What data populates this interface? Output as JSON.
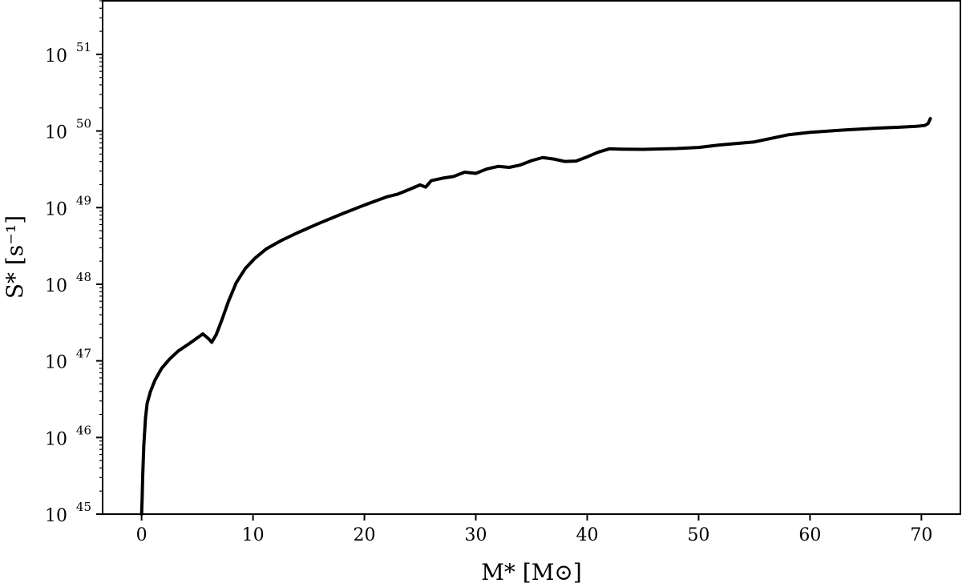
{
  "chart_data": {
    "type": "line",
    "title": "",
    "xlabel": "M* [M⊙]",
    "ylabel": "S* [s⁻¹]",
    "y_scale": "log",
    "xlim": [
      -3.5,
      73.5
    ],
    "ylim": [
      1e+45,
      5e+51
    ],
    "grid": false,
    "legend": "none",
    "x_ticks": [
      "0",
      "10",
      "20",
      "30",
      "40",
      "50",
      "60",
      "70"
    ],
    "x_tick_values": [
      0,
      10,
      20,
      30,
      40,
      50,
      60,
      70
    ],
    "y_tick_values": [
      1e+45,
      1e+46,
      1e+47,
      1e+48,
      1e+49,
      1e+50,
      1e+51
    ],
    "y_tick_base": "10",
    "y_tick_exponents": [
      "45",
      "46",
      "47",
      "48",
      "49",
      "50",
      "51"
    ],
    "series": [
      {
        "color": "#000000",
        "x": [
          0.0,
          0.05,
          0.1,
          0.2,
          0.35,
          0.5,
          0.8,
          1.2,
          1.8,
          2.5,
          3.3,
          4.2,
          5.0,
          5.5,
          6.0,
          6.3,
          6.7,
          7.2,
          7.8,
          8.5,
          9.3,
          10.2,
          11.2,
          12.5,
          14.0,
          16.0,
          18.0,
          20.0,
          22.0,
          23.0,
          24.0,
          25.0,
          25.5,
          26.0,
          27.0,
          28.0,
          29.0,
          30.0,
          31.0,
          32.0,
          33.0,
          34.0,
          35.0,
          36.0,
          37.0,
          38.0,
          39.0,
          40.0,
          41.0,
          42.0,
          43.0,
          45.0,
          48.0,
          50.0,
          52.0,
          55.0,
          58.0,
          60.0,
          63.0,
          66.0,
          68.0,
          69.5,
          70.3,
          70.6,
          70.8
        ],
        "y": [
          1e+45,
          1.6e+45,
          3.2e+45,
          8e+45,
          1.8e+46,
          2.8e+46,
          4e+46,
          5.6e+46,
          8e+46,
          1.05e+47,
          1.35e+47,
          1.65e+47,
          2e+47,
          2.25e+47,
          1.95e+47,
          1.75e+47,
          2.2e+47,
          3.4e+47,
          6e+47,
          1.05e+48,
          1.6e+48,
          2.2e+48,
          2.9e+48,
          3.7e+48,
          4.7e+48,
          6.3e+48,
          8.3e+48,
          1.08e+49,
          1.38e+49,
          1.5e+49,
          1.72e+49,
          1.98e+49,
          1.85e+49,
          2.25e+49,
          2.42e+49,
          2.55e+49,
          2.9e+49,
          2.8e+49,
          3.2e+49,
          3.45e+49,
          3.35e+49,
          3.6e+49,
          4.1e+49,
          4.5e+49,
          4.3e+49,
          4e+49,
          4.05e+49,
          4.6e+49,
          5.3e+49,
          5.85e+49,
          5.8e+49,
          5.75e+49,
          5.9e+49,
          6.1e+49,
          6.6e+49,
          7.2e+49,
          8.9e+49,
          9.6e+49,
          1.03e+50,
          1.09e+50,
          1.12e+50,
          1.15e+50,
          1.18e+50,
          1.25e+50,
          1.45e+50
        ]
      }
    ]
  }
}
